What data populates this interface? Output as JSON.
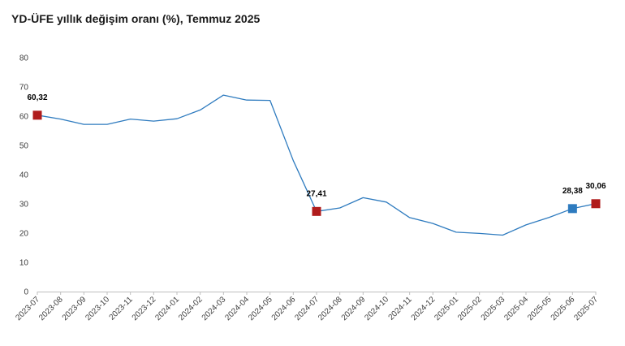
{
  "title": "YD-ÜFE yıllık değişim oranı (%), Temmuz 2025",
  "colors": {
    "line": "#2e7bbf",
    "marker_red": "#b01c1c",
    "marker_blue": "#2e7bbf",
    "axis": "#bfbfbf",
    "tick_text": "#404040"
  },
  "chart_data": {
    "type": "line",
    "title": "YD-ÜFE yıllık değişim oranı (%), Temmuz 2025",
    "xlabel": "",
    "ylabel": "",
    "ylim": [
      0,
      80
    ],
    "yticks": [
      0,
      10,
      20,
      30,
      40,
      50,
      60,
      70,
      80
    ],
    "grid": false,
    "legend": "none",
    "categories": [
      "2023-07",
      "2023-08",
      "2023-09",
      "2023-10",
      "2023-11",
      "2023-12",
      "2024-01",
      "2024-02",
      "2024-03",
      "2024-04",
      "2024-05",
      "2024-06",
      "2024-07",
      "2024-08",
      "2024-09",
      "2024-10",
      "2024-11",
      "2024-12",
      "2025-01",
      "2025-02",
      "2025-03",
      "2025-04",
      "2025-05",
      "2025-06",
      "2025-07"
    ],
    "series": [
      {
        "values": [
          60.32,
          59.0,
          57.2,
          57.2,
          59.0,
          58.3,
          59.1,
          62.1,
          67.2,
          65.5,
          65.4,
          44.8,
          27.41,
          28.6,
          32.1,
          30.6,
          25.3,
          23.3,
          20.3,
          19.9,
          19.3,
          22.8,
          25.4,
          28.38,
          30.06
        ],
        "color": "#2e7bbf"
      }
    ],
    "highlights": [
      {
        "category": "2023-07",
        "value": 60.32,
        "label": "60,32",
        "color": "#b01c1c"
      },
      {
        "category": "2024-07",
        "value": 27.41,
        "label": "27,41",
        "color": "#b01c1c"
      },
      {
        "category": "2025-06",
        "value": 28.38,
        "label": "28,38",
        "color": "#2e7bbf"
      },
      {
        "category": "2025-07",
        "value": 30.06,
        "label": "30,06",
        "color": "#b01c1c"
      }
    ]
  }
}
